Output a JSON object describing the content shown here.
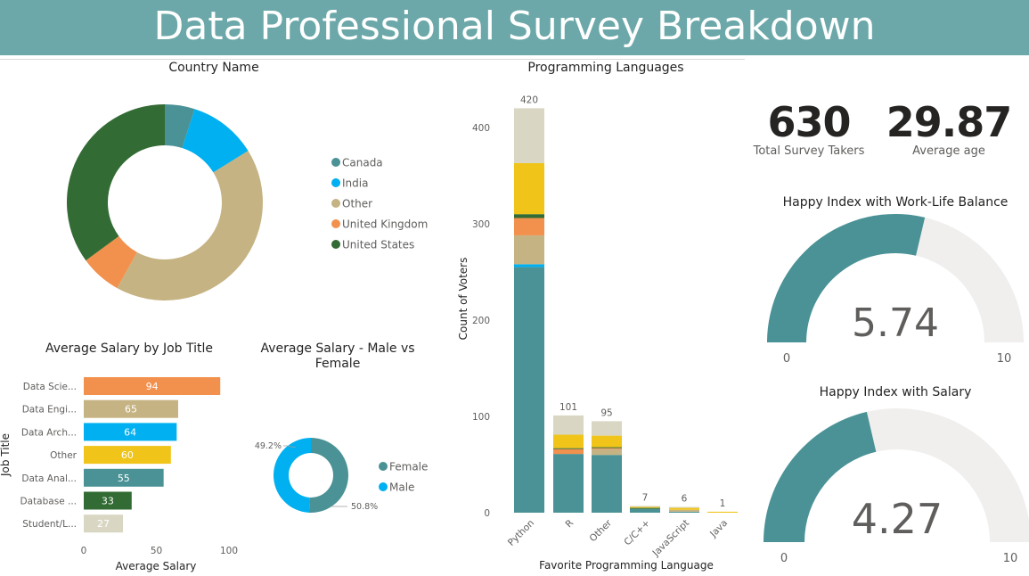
{
  "header": {
    "title": "Data Professional Survey Breakdown"
  },
  "kpis": {
    "survey_takers": {
      "value": "630",
      "label": "Total Survey Takers"
    },
    "average_age": {
      "value": "29.87",
      "label": "Average age"
    }
  },
  "chart_data": [
    {
      "type": "pie",
      "title": "Country Name",
      "donut": true,
      "legend": "right",
      "labels": [
        "Canada",
        "India",
        "Other",
        "United Kingdom",
        "United States"
      ],
      "values": [
        31,
        71,
        264,
        43,
        221
      ],
      "colors": [
        "#4a9296",
        "#00b0f0",
        "#c6b383",
        "#f2914d",
        "#326b33"
      ]
    },
    {
      "type": "bar",
      "title": "Average Salary by Job Title",
      "orientation": "horizontal",
      "xlabel": "Average Salary",
      "ylabel": "Job Title",
      "categories": [
        "Data Scie...",
        "Data Engi...",
        "Data Arch...",
        "Other",
        "Data Anal...",
        "Database ...",
        "Student/L..."
      ],
      "values": [
        94,
        65,
        64,
        60,
        55,
        33,
        27
      ],
      "colors": [
        "#f2914d",
        "#c6b383",
        "#00b0f0",
        "#f0c419",
        "#4a9296",
        "#326b33",
        "#d9d7c3"
      ],
      "xlim": [
        0,
        100
      ],
      "xticks": [
        "0",
        "50",
        "100"
      ]
    },
    {
      "type": "pie",
      "title": "Average Salary - Male vs Female",
      "donut": true,
      "legend": "right",
      "labels": [
        "Female",
        "Male"
      ],
      "values": [
        50.8,
        49.2
      ],
      "data_labels": [
        "50.8%",
        "49.2%"
      ],
      "colors": [
        "#4a9296",
        "#00b0f0"
      ]
    },
    {
      "type": "bar",
      "stacked": true,
      "title": "Programming Languages",
      "xlabel": "Favorite Programming Language",
      "ylabel": "Count of Voters",
      "categories": [
        "Python",
        "R",
        "Other",
        "C/C++",
        "JavaScript",
        "Java"
      ],
      "totals": [
        420,
        101,
        95,
        7,
        6,
        1
      ],
      "total_labels": [
        "420",
        "101",
        "95",
        "7",
        "6",
        "1"
      ],
      "ylim": [
        0,
        430
      ],
      "yticks": [
        "0",
        "100",
        "200",
        "300",
        "400"
      ],
      "series": [
        {
          "color": "#4a9296",
          "values": [
            255,
            61,
            60,
            4,
            1,
            0
          ]
        },
        {
          "color": "#00b0f0",
          "values": [
            3,
            0,
            0,
            0,
            0,
            0
          ]
        },
        {
          "color": "#c6b383",
          "values": [
            30,
            0,
            6,
            0,
            2,
            0
          ]
        },
        {
          "color": "#f2914d",
          "values": [
            18,
            5,
            1,
            0,
            0,
            0
          ]
        },
        {
          "color": "#326b33",
          "values": [
            4,
            1,
            1,
            1,
            0,
            0
          ]
        },
        {
          "color": "#f0c419",
          "values": [
            53,
            14,
            12,
            1,
            2,
            1
          ]
        },
        {
          "color": "#d9d7c3",
          "values": [
            57,
            20,
            15,
            1,
            1,
            0
          ]
        }
      ]
    },
    {
      "type": "gauge",
      "title": "Happy Index with Work-Life Balance",
      "value": 5.74,
      "value_label": "5.74",
      "min_label": "0",
      "max_label": "10",
      "range": [
        0,
        10
      ],
      "colors": [
        "#4a9296",
        "#f0efee"
      ]
    },
    {
      "type": "gauge",
      "title": "Happy Index with Salary",
      "value": 4.27,
      "value_label": "4.27",
      "min_label": "0",
      "max_label": "10",
      "range": [
        0,
        10
      ],
      "colors": [
        "#4a9296",
        "#f0efee"
      ]
    }
  ]
}
